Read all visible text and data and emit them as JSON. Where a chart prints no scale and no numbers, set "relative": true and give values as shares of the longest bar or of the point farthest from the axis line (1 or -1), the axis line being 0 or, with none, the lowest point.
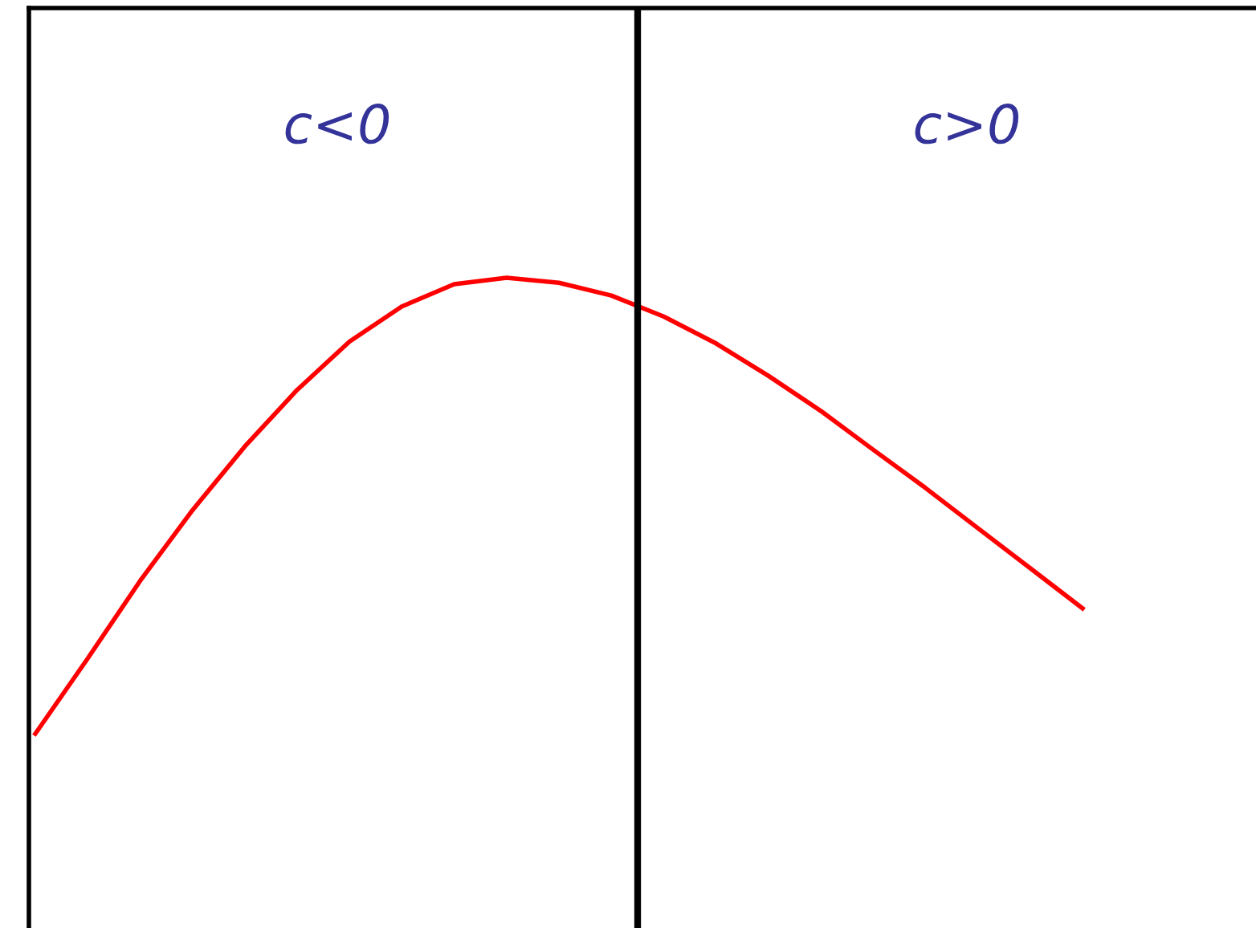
{
  "chart_data": {
    "type": "line",
    "relative": true,
    "categories": [
      null,
      null,
      null,
      null,
      null,
      null,
      null,
      null,
      null,
      null,
      null,
      null,
      null,
      null,
      null,
      null,
      null,
      null,
      null,
      null,
      null
    ],
    "series": [
      {
        "color": "#ff0000",
        "values": [
          0,
          0.165,
          0.335,
          0.49,
          0.63,
          0.754,
          0.86,
          0.937,
          0.986,
          1.0,
          0.989,
          0.961,
          0.915,
          0.856,
          0.785,
          0.708,
          0.623,
          0.539,
          0.451,
          0.363,
          0.275
        ]
      }
    ],
    "annotations": [
      "c<0",
      "c>0"
    ],
    "marker": "none",
    "line_style": "solid"
  }
}
